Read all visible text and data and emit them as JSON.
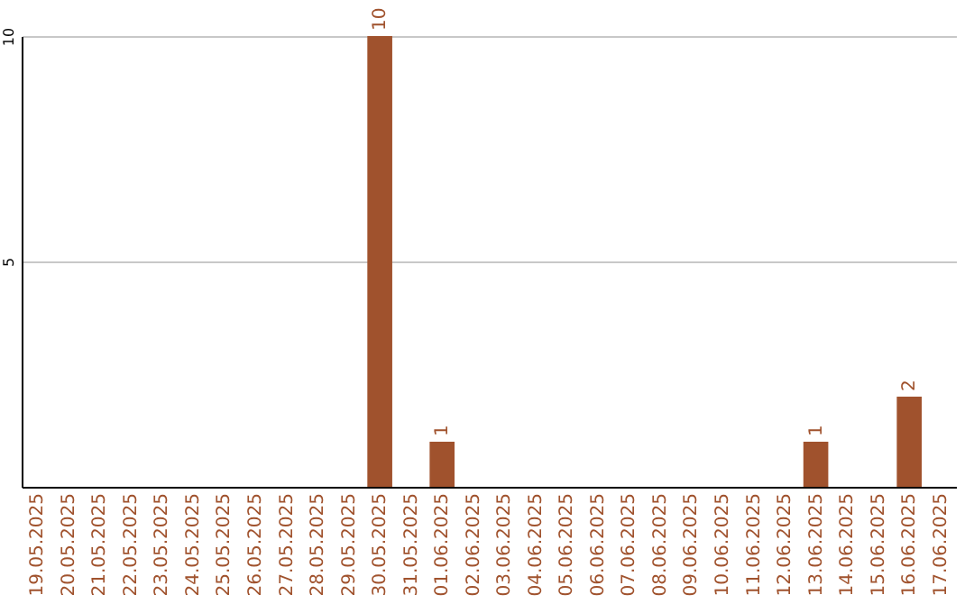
{
  "chart_data": {
    "type": "bar",
    "categories": [
      "19.05.2025",
      "20.05.2025",
      "21.05.2025",
      "22.05.2025",
      "23.05.2025",
      "24.05.2025",
      "25.05.2025",
      "26.05.2025",
      "27.05.2025",
      "28.05.2025",
      "29.05.2025",
      "30.05.2025",
      "31.05.2025",
      "01.06.2025",
      "02.06.2025",
      "03.06.2025",
      "04.06.2025",
      "05.06.2025",
      "06.06.2025",
      "07.06.2025",
      "08.06.2025",
      "09.06.2025",
      "10.06.2025",
      "11.06.2025",
      "12.06.2025",
      "13.06.2025",
      "14.06.2025",
      "15.06.2025",
      "16.06.2025",
      "17.06.2025"
    ],
    "values": [
      0,
      0,
      0,
      0,
      0,
      0,
      0,
      0,
      0,
      0,
      0,
      10,
      0,
      1,
      0,
      0,
      0,
      0,
      0,
      0,
      0,
      0,
      0,
      0,
      0,
      1,
      0,
      0,
      2,
      0
    ],
    "value_labels": [
      null,
      null,
      null,
      null,
      null,
      null,
      null,
      null,
      null,
      null,
      null,
      "10",
      null,
      "1",
      null,
      null,
      null,
      null,
      null,
      null,
      null,
      null,
      null,
      null,
      null,
      "1",
      null,
      null,
      "2",
      null
    ],
    "color": "#a0522d",
    "ylim": [
      0,
      10
    ],
    "yticks": [
      {
        "value": 0,
        "label": null
      },
      5,
      10
    ],
    "grid": "y"
  }
}
